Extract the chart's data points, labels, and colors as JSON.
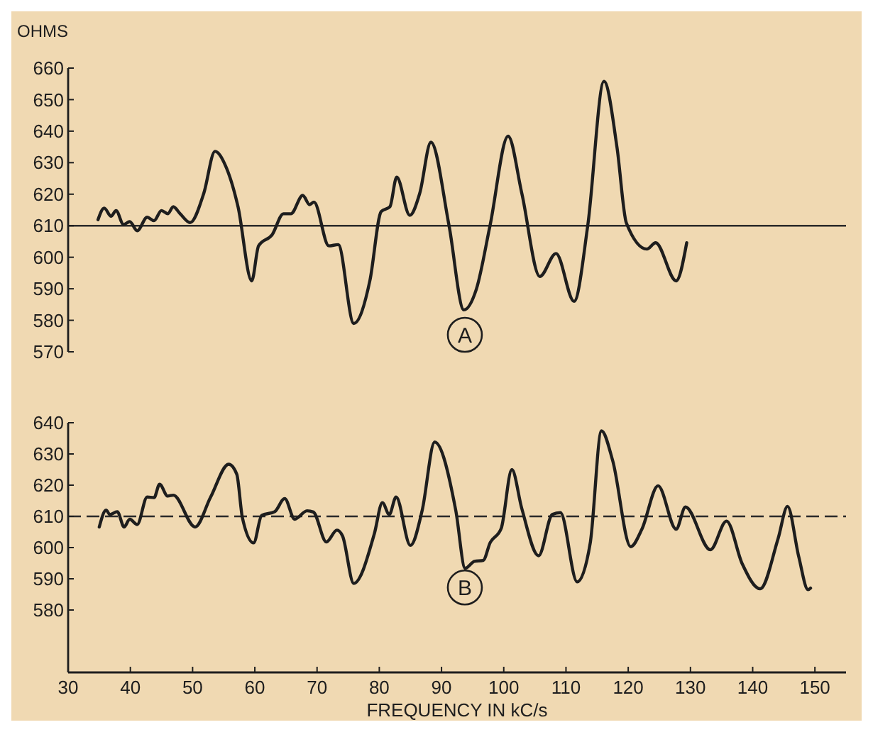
{
  "chart_data": [
    {
      "type": "line",
      "ylabel": "OHMS",
      "xlim": [
        30,
        155
      ],
      "ylim": [
        570,
        660
      ],
      "yticks": [
        570,
        580,
        590,
        600,
        610,
        620,
        630,
        640,
        650,
        660
      ],
      "tick_labels": "y",
      "color": "#1e1e1e",
      "line_style": "solid",
      "annotations": [
        "A"
      ],
      "ref_lines": [
        {
          "axis": "y",
          "value": 610,
          "line_style": "solid",
          "color": "#2a2a2a"
        }
      ],
      "x": [
        34.8,
        35.8,
        36.9,
        37.7,
        38.9,
        39.9,
        41.1,
        42.7,
        43.8,
        45.0,
        46.0,
        46.9,
        48.0,
        49.6,
        51.8,
        53.6,
        55.3,
        57.3,
        59.5,
        60.6,
        62.8,
        64.6,
        65.8,
        67.7,
        68.8,
        69.5,
        71.9,
        73.4,
        75.9,
        78.5,
        80.3,
        81.7,
        82.8,
        84.9,
        86.5,
        88.3,
        91.2,
        93.6,
        95.6,
        97.8,
        100.7,
        102.9,
        105.8,
        108.4,
        111.3,
        113.5,
        116.1,
        118.2,
        119.7,
        123.0,
        124.4,
        127.7,
        129.4
      ],
      "values": [
        611.9,
        615.6,
        613,
        614.8,
        610.4,
        611.3,
        608.4,
        612.7,
        611.6,
        614.8,
        613.8,
        616,
        613.8,
        611,
        620.3,
        633.6,
        629,
        616,
        592.5,
        603.6,
        607.2,
        613.8,
        613.8,
        619.6,
        616.7,
        617.5,
        603.6,
        604,
        579,
        592.7,
        614.5,
        616,
        625.4,
        613.3,
        620.3,
        636.5,
        610.1,
        583.3,
        589.9,
        610.1,
        638.4,
        620.3,
        593.9,
        601.2,
        586,
        610.1,
        655.8,
        634.8,
        610.9,
        602.6,
        604.6,
        592.5,
        604.6
      ]
    },
    {
      "type": "line",
      "xlabel": "FREQUENCY IN kC/s",
      "xlim": [
        30,
        155
      ],
      "xticks": [
        30,
        40,
        50,
        60,
        70,
        80,
        90,
        100,
        110,
        120,
        130,
        140,
        150
      ],
      "ylim": [
        560,
        640
      ],
      "yticks": [
        580,
        590,
        600,
        610,
        620,
        630,
        640
      ],
      "color": "#1e1e1e",
      "line_style": "solid",
      "annotations": [
        "B"
      ],
      "ref_lines": [
        {
          "axis": "y",
          "value": 610,
          "line_style": "dashed",
          "color": "#2a2a2a"
        }
      ],
      "x": [
        35.0,
        36.1,
        36.7,
        37.9,
        39.0,
        39.9,
        41.1,
        42.7,
        43.8,
        44.7,
        46.0,
        46.9,
        50.4,
        52.9,
        55.8,
        57.1,
        58.0,
        59.8,
        61.1,
        63.2,
        64.8,
        66.4,
        68.4,
        69.4,
        71.5,
        73.2,
        74.1,
        75.9,
        79.2,
        80.5,
        81.6,
        82.7,
        85.0,
        86.9,
        88.9,
        92.3,
        93.8,
        95.3,
        96.7,
        97.8,
        99.6,
        101.3,
        102.9,
        105.6,
        107.8,
        109.1,
        111.8,
        113.9,
        115.7,
        117.5,
        120.4,
        122.2,
        124.8,
        127.7,
        129.2,
        133.2,
        135.8,
        138.3,
        141.2,
        144.1,
        145.6,
        147.4,
        148.9,
        149.3
      ],
      "values": [
        606.6,
        612,
        610.6,
        611.5,
        606.6,
        609.1,
        607.4,
        616.2,
        616,
        620.3,
        616.5,
        616.8,
        606.6,
        616.2,
        626.7,
        623.5,
        609.6,
        601.5,
        610.3,
        611.5,
        615.7,
        609.1,
        611.8,
        611.4,
        601.8,
        605.6,
        603.7,
        588.5,
        604.4,
        614.4,
        610.6,
        616.2,
        600.7,
        612,
        633.8,
        611.8,
        593.4,
        595.6,
        595.9,
        601.5,
        606.2,
        625,
        612.5,
        597.4,
        610.6,
        611.2,
        589,
        601.5,
        637.4,
        627.9,
        600.3,
        605.9,
        619.8,
        605.9,
        613,
        599.3,
        608.5,
        594.9,
        586.8,
        603,
        613.2,
        597.1,
        586.5,
        587
      ]
    }
  ]
}
